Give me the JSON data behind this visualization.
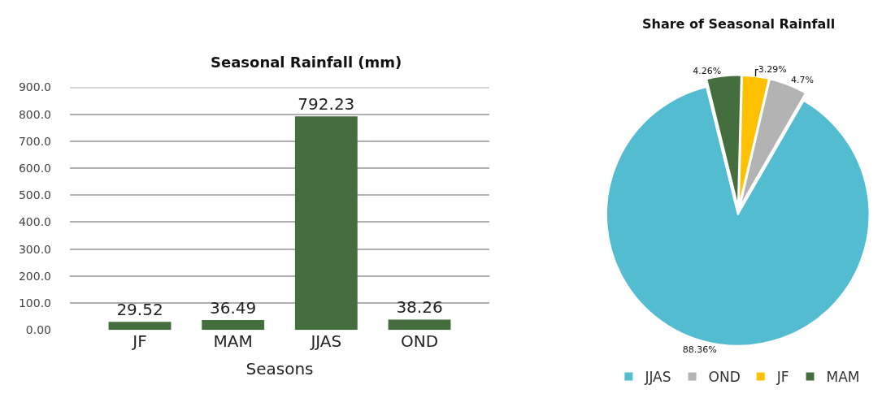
{
  "chart_data": [
    {
      "type": "bar",
      "title": "Seasonal Rainfall (mm)",
      "xlabel": "Seasons",
      "categories": [
        "JF",
        "MAM",
        "JJAS",
        "OND"
      ],
      "series": [
        {
          "color": "#446e3d",
          "values": [
            29.52,
            36.49,
            792.23,
            38.26
          ]
        }
      ],
      "data_labels": true,
      "grid": "y",
      "legend": false,
      "ylim": [
        0,
        900
      ],
      "yticks": [
        {
          "value": 0,
          "label": "0.00"
        },
        {
          "value": 100,
          "label": "100.0"
        },
        {
          "value": 200,
          "label": "200.0"
        },
        {
          "value": 300,
          "label": "300.0"
        },
        {
          "value": 400,
          "label": "400.0"
        },
        {
          "value": 500,
          "label": "500.0"
        },
        {
          "value": 600,
          "label": "600.0"
        },
        {
          "value": 700,
          "label": "700.0"
        },
        {
          "value": 800,
          "label": "800.0"
        },
        {
          "value": 900,
          "label": "900.0"
        }
      ]
    },
    {
      "type": "pie",
      "title": "Share of Seasonal Rainfall",
      "categories": [
        "JJAS",
        "OND",
        "JF",
        "MAM"
      ],
      "values": [
        88.36,
        4.7,
        3.29,
        4.26
      ],
      "colors": [
        "#53bcd1",
        "#b3b3b3",
        "#ffc000",
        "#446e3d"
      ],
      "value_labels": [
        "88.36%",
        "4.7%",
        "3.29%",
        "4.26%"
      ],
      "legend": "bottom"
    }
  ]
}
